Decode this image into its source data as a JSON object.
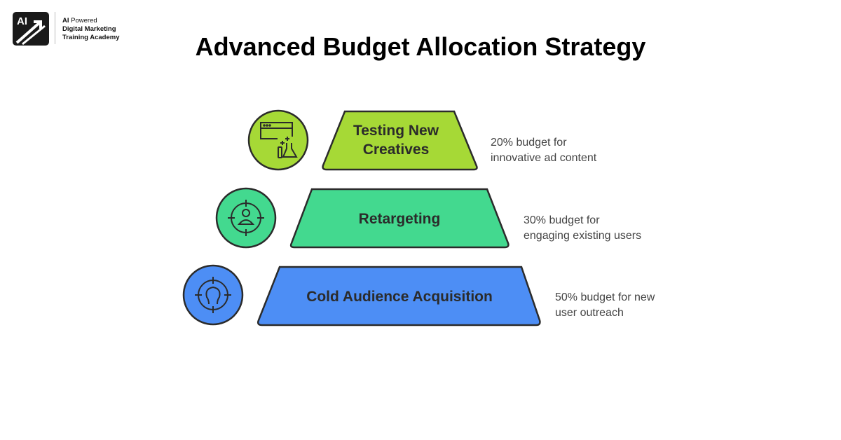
{
  "logo": {
    "mark": "AI",
    "line1_bold": "AI",
    "line1_rest": " Powered",
    "line2": "Digital Marketing",
    "line3": "Training Academy"
  },
  "title": "Advanced Budget Allocation Strategy",
  "tiers": [
    {
      "label_lines": [
        "Testing New",
        "Creatives"
      ],
      "description_lines": [
        "20% budget for",
        "innovative ad content"
      ],
      "budget_percent": 20,
      "icon": "browser-flask-icon",
      "color": "#a6d936"
    },
    {
      "label_lines": [
        "Retargeting"
      ],
      "description_lines": [
        "30% budget for",
        "engaging existing users"
      ],
      "budget_percent": 30,
      "icon": "target-person-icon",
      "color": "#43d98f"
    },
    {
      "label_lines": [
        "Cold Audience Acquisition"
      ],
      "description_lines": [
        "50% budget for new",
        "user outreach"
      ],
      "budget_percent": 50,
      "icon": "target-user-icon",
      "color": "#4d8ef5"
    }
  ]
}
